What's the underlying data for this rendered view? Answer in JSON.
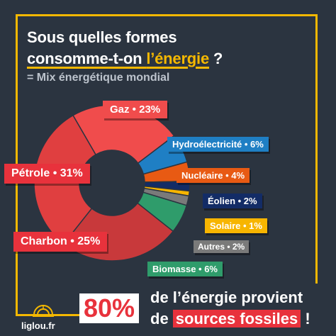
{
  "title": {
    "line1": "Sous quelles formes",
    "line2_a": "consomme-t-on ",
    "line2_accent": "l’énergie",
    "line2_b": " ?",
    "subtitle": "= Mix énergétique mondial"
  },
  "colors": {
    "background": "#2b3440",
    "frame": "#f5b800",
    "accent_red": "#e8323c"
  },
  "chart_data": {
    "type": "pie",
    "variant": "donut",
    "slices": [
      {
        "label": "Gaz • 23%",
        "name": "Gaz",
        "value": 23,
        "color": "#f04c4c"
      },
      {
        "label": "Hydroélectricité • 6%",
        "name": "Hydroélectricité",
        "value": 6,
        "color": "#1f7fc4"
      },
      {
        "label": "Nucléaire • 4%",
        "name": "Nucléaire",
        "value": 4,
        "color": "#e85a13"
      },
      {
        "label": "Éolien • 2%",
        "name": "Éolien",
        "value": 2,
        "color": "#132c66"
      },
      {
        "label": "Solaire • 1%",
        "name": "Solaire",
        "value": 1,
        "color": "#f7b500"
      },
      {
        "label": "Autres • 2%",
        "name": "Autres",
        "value": 2,
        "color": "#7a7a7a"
      },
      {
        "label": "Biomasse • 6%",
        "name": "Biomasse",
        "value": 6,
        "color": "#2f9c6b"
      },
      {
        "label": "Charbon • 25%",
        "name": "Charbon",
        "value": 25,
        "color": "#c8393b"
      },
      {
        "label": "Pétrole • 31%",
        "name": "Pétrole",
        "value": 31,
        "color": "#e03f40"
      }
    ]
  },
  "footer": {
    "big_pct": "80%",
    "line1": "de l’énergie provient",
    "line2_a": "de ",
    "line2_highlight": "sources fossiles",
    "line2_b": " !",
    "brand": "liglou.fr"
  }
}
